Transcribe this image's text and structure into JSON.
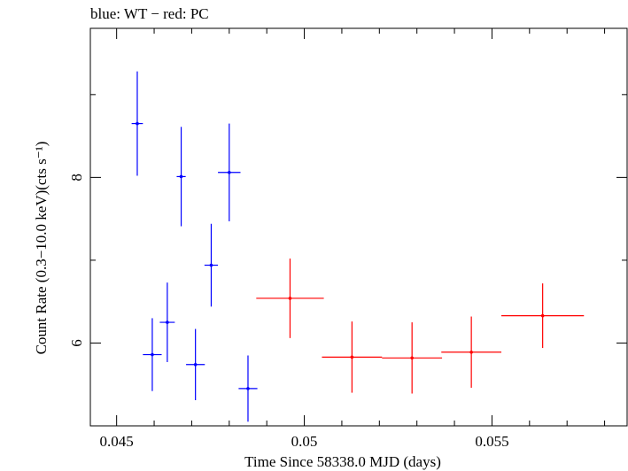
{
  "chart_data": {
    "type": "scatter",
    "title": "blue: WT − red: PC",
    "xlabel": "Time Since 58338.0 MJD (days)",
    "ylabel": "Count Rate (0.3−10.0 keV)(cts s⁻¹)",
    "xlim": [
      0.0443,
      0.0586
    ],
    "ylim": [
      5.0,
      9.8
    ],
    "x_ticks": [
      0.045,
      0.05,
      0.055
    ],
    "x_tick_labels": [
      "0.045",
      "0.05",
      "0.055"
    ],
    "y_ticks": [
      6,
      8
    ],
    "y_tick_labels": [
      "6",
      "8"
    ],
    "grid": false,
    "series": [
      {
        "color": "#0000ff",
        "points": [
          {
            "x": 0.04555,
            "y": 8.65,
            "xerr": 0.00015,
            "yerr": 0.63
          },
          {
            "x": 0.04595,
            "y": 5.86,
            "xerr": 0.00025,
            "yerr": 0.44
          },
          {
            "x": 0.04635,
            "y": 6.25,
            "xerr": 0.0002,
            "yerr": 0.48
          },
          {
            "x": 0.04672,
            "y": 8.01,
            "xerr": 0.00012,
            "yerr": 0.6
          },
          {
            "x": 0.0471,
            "y": 5.74,
            "xerr": 0.00025,
            "yerr": 0.43
          },
          {
            "x": 0.04752,
            "y": 6.94,
            "xerr": 0.00018,
            "yerr": 0.5
          },
          {
            "x": 0.048,
            "y": 8.06,
            "xerr": 0.0003,
            "yerr": 0.59
          },
          {
            "x": 0.0485,
            "y": 5.45,
            "xerr": 0.00025,
            "yerr": 0.4
          }
        ]
      },
      {
        "color": "#ff0000",
        "points": [
          {
            "x": 0.04962,
            "y": 6.54,
            "xerr": 0.0009,
            "yerr": 0.48
          },
          {
            "x": 0.05127,
            "y": 5.83,
            "xerr": 0.0008,
            "yerr": 0.43
          },
          {
            "x": 0.05287,
            "y": 5.82,
            "xerr": 0.0008,
            "yerr": 0.43
          },
          {
            "x": 0.05445,
            "y": 5.89,
            "xerr": 0.0008,
            "yerr": 0.43
          },
          {
            "x": 0.05635,
            "y": 6.33,
            "xerr": 0.0011,
            "yerr": 0.39
          }
        ]
      }
    ]
  }
}
